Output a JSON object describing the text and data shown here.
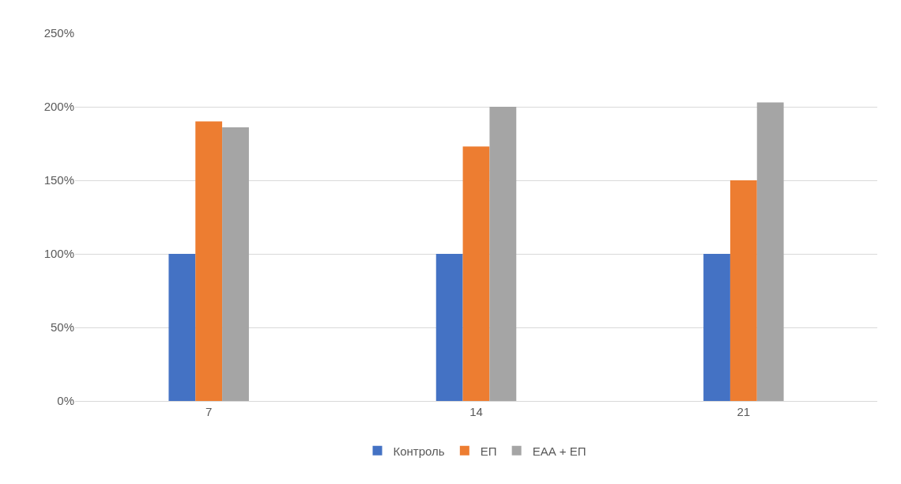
{
  "chart_data": {
    "type": "bar",
    "categories": [
      "7",
      "14",
      "21"
    ],
    "series": [
      {
        "name": "Контроль",
        "color": "#4472c4",
        "values": [
          100,
          100,
          100
        ]
      },
      {
        "name": "ЕП",
        "color": "#ed7d31",
        "values": [
          190,
          173,
          150
        ]
      },
      {
        "name": "ЕАА + ЕП",
        "color": "#a5a5a5",
        "values": [
          186,
          200,
          203
        ]
      }
    ],
    "ylim": [
      0,
      250
    ],
    "yticks": [
      {
        "value": 0,
        "label": "0%"
      },
      {
        "value": 50,
        "label": "50%"
      },
      {
        "value": 100,
        "label": "100%"
      },
      {
        "value": 150,
        "label": "150%"
      },
      {
        "value": 200,
        "label": "200%"
      },
      {
        "value": 250,
        "label": "250%"
      }
    ],
    "grid": "y",
    "legend": "bottom"
  }
}
